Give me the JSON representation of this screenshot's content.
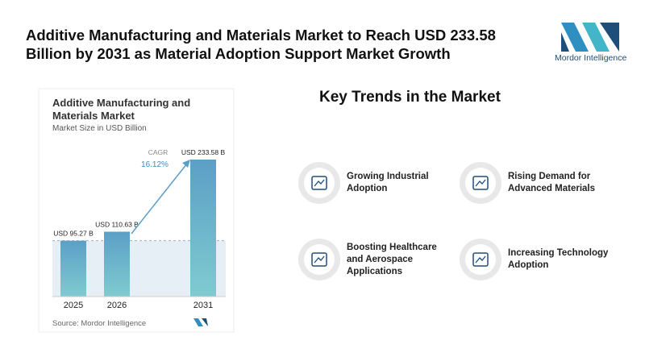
{
  "header": {
    "title": "Additive Manufacturing and Materials Market to Reach USD 233.58 Billion by 2031 as Material Adoption Support Market Growth",
    "logo": "Mordor Intelligence"
  },
  "chart_data": {
    "type": "bar",
    "title": "Additive Manufacturing and Materials Market",
    "subtitle": "Market Size in USD Billion",
    "categories": [
      "2025",
      "2026",
      "2031"
    ],
    "values": [
      95.27,
      110.63,
      233.58
    ],
    "value_labels": [
      "USD 95.27 B",
      "USD 110.63 B",
      "USD 233.58 B"
    ],
    "annotation": {
      "label": "CAGR",
      "text": "16.12%"
    },
    "source": "Source: Mordor Intelligence",
    "color": "#5c9fc6"
  },
  "trends": {
    "title": "Key Trends in the Market",
    "items": [
      "Growing Industrial Adoption",
      "Rising Demand for Advanced Materials",
      "Boosting Healthcare and Aerospace Applications",
      "Increasing Technology Adoption"
    ]
  }
}
